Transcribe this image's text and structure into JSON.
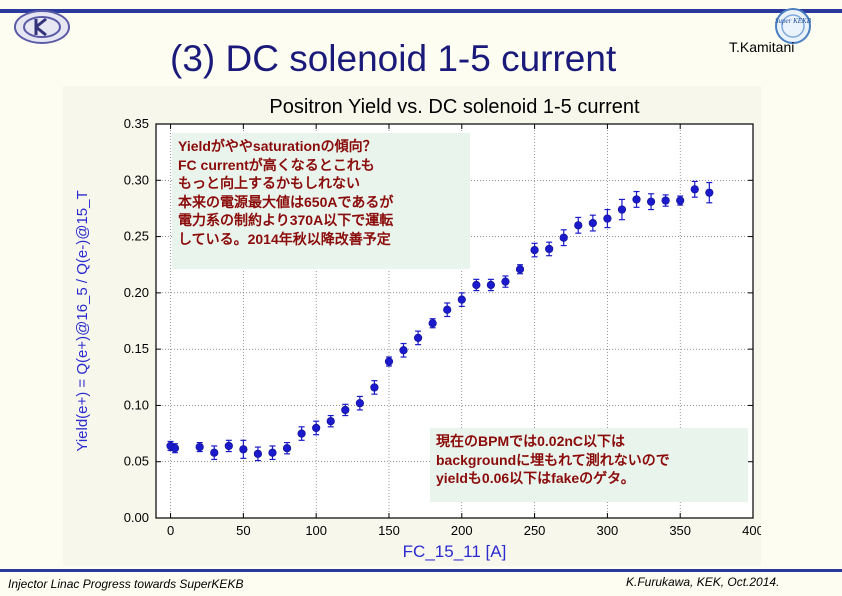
{
  "slide": {
    "title": "(3) DC solenoid 1-5 current",
    "author": "T.Kamitani",
    "footer_left": "Injector Linac Progress towards SuperKEKB",
    "footer_right": "K.Furukawa, KEK, Oct.2014.",
    "logo_right_text": "Super KEKB"
  },
  "colors": {
    "accent": "#2a3a9c",
    "marker": "#1a1acc",
    "axis_label": "#2b2bd0",
    "note_text": "#8b0a0a",
    "note_bg": "#e8f4ec"
  },
  "annotations": {
    "note1": [
      "Yieldがややsaturationの傾向？",
      "FC currentが高くなるとこれも",
      "もっと向上するかもしれない",
      "本来の電源最大値は650Aであるが",
      "電力系の制約より370A以下で運転",
      "している。2014年秋以降改善予定"
    ],
    "note2": [
      "現在のBPMでは0.02nC以下は",
      "backgroundに埋もれて測れないので",
      "yieldも0.06以下はfakeのゲタ。"
    ]
  },
  "chart_data": {
    "type": "scatter",
    "title": "Positron Yield vs. DC solenoid 1-5 current",
    "xlabel": "FC_15_11 [A]",
    "ylabel": "Yield(e+) = Q(e+)@16_5 / Q(e-)@15_T",
    "xlim": [
      -10,
      400
    ],
    "ylim": [
      0.0,
      0.35
    ],
    "xticks": [
      "0",
      "50",
      "100",
      "150",
      "200",
      "250",
      "300",
      "350",
      "400"
    ],
    "yticks": [
      "0.00",
      "0.05",
      "0.10",
      "0.15",
      "0.20",
      "0.25",
      "0.30",
      "0.35"
    ],
    "grid": true,
    "series": [
      {
        "x": [
          0,
          3,
          20,
          30,
          40,
          50,
          60,
          70,
          80,
          90,
          100,
          110,
          120,
          130,
          140,
          150,
          160,
          170,
          180,
          190,
          200,
          210,
          220,
          230,
          240,
          250,
          260,
          270,
          280,
          290,
          300,
          310,
          320,
          330,
          340,
          350,
          360,
          370
        ],
        "y": [
          0.064,
          0.062,
          0.063,
          0.058,
          0.064,
          0.061,
          0.057,
          0.058,
          0.062,
          0.075,
          0.08,
          0.086,
          0.096,
          0.102,
          0.116,
          0.139,
          0.149,
          0.16,
          0.173,
          0.185,
          0.194,
          0.207,
          0.207,
          0.21,
          0.221,
          0.238,
          0.239,
          0.249,
          0.26,
          0.262,
          0.266,
          0.274,
          0.283,
          0.281,
          0.282,
          0.282,
          0.292,
          0.289
        ],
        "yerr": [
          0.004,
          0.004,
          0.004,
          0.006,
          0.005,
          0.008,
          0.006,
          0.006,
          0.005,
          0.006,
          0.006,
          0.005,
          0.005,
          0.006,
          0.006,
          0.004,
          0.006,
          0.006,
          0.004,
          0.006,
          0.006,
          0.005,
          0.005,
          0.005,
          0.004,
          0.006,
          0.006,
          0.007,
          0.007,
          0.007,
          0.008,
          0.009,
          0.007,
          0.007,
          0.005,
          0.004,
          0.007,
          0.009
        ]
      }
    ]
  }
}
